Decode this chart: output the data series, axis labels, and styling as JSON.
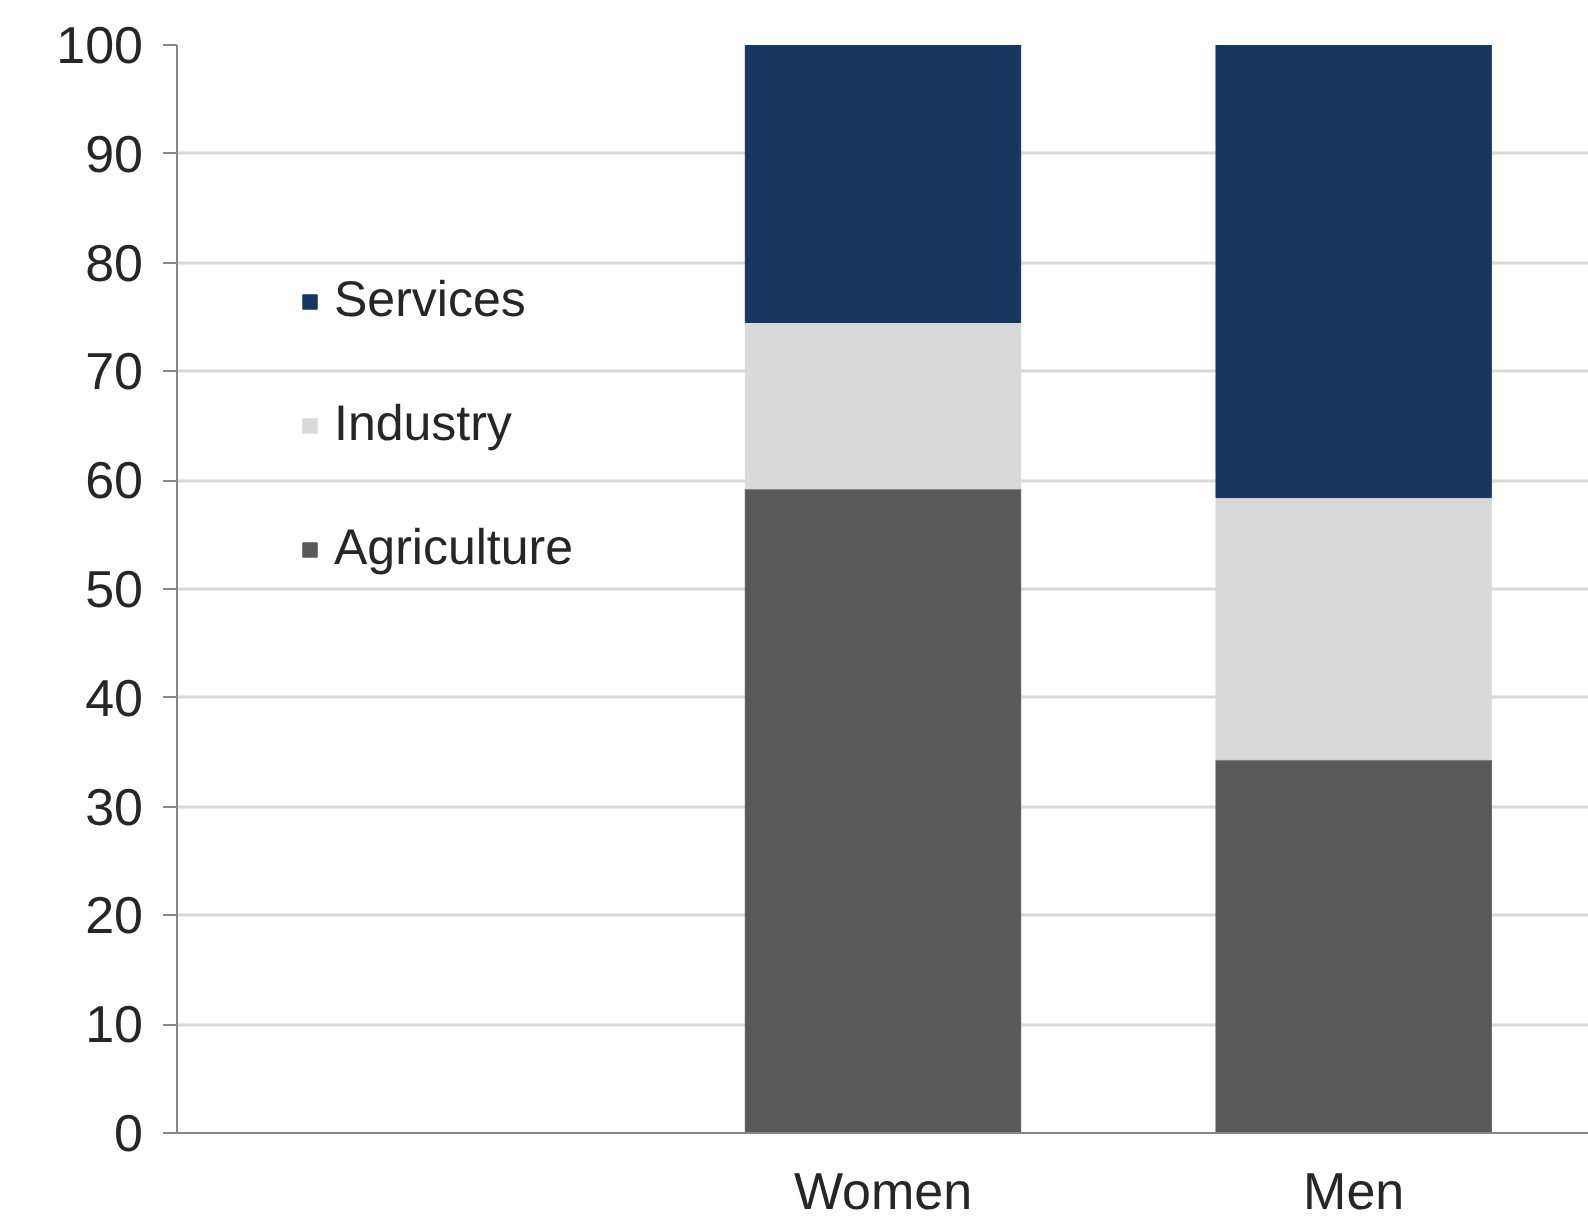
{
  "chart_data": {
    "type": "bar",
    "stacked": true,
    "categories": [
      null,
      "Women",
      "Men"
    ],
    "series": [
      {
        "name": "Agriculture",
        "color": "#595959",
        "values": [
          null,
          59.2,
          34.3
        ]
      },
      {
        "name": "Industry",
        "color": "#d9d9d9",
        "values": [
          null,
          15.3,
          24.1
        ]
      },
      {
        "name": "Services",
        "color": "#17375e",
        "values": [
          null,
          25.5,
          41.6
        ]
      }
    ],
    "ylim": [
      0,
      100
    ],
    "yticks": [
      0,
      10,
      20,
      30,
      40,
      50,
      60,
      70,
      80,
      90,
      100
    ],
    "grid": "y",
    "legend": "top left"
  }
}
